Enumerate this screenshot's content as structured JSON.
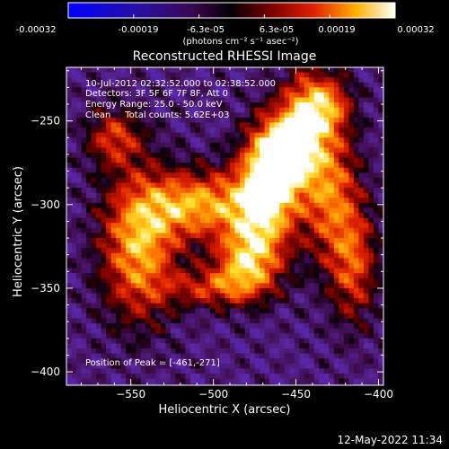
{
  "colorbar": {
    "ticks": [
      "-0.00032",
      "-0.00019",
      "-6.3e-05",
      "6.3e-05",
      "0.00019",
      "0.00032"
    ],
    "range": [
      -0.00032,
      0.00032
    ],
    "units_label": "(photons cm⁻² s⁻¹ asec⁻²)"
  },
  "chart_data": {
    "type": "heatmap",
    "title": "Reconstructed RHESSI Image",
    "xlabel": "Heliocentric X (arcsec)",
    "ylabel": "Heliocentric Y (arcsec)",
    "xlim": [
      -589,
      -397
    ],
    "ylim": [
      -408,
      -218
    ],
    "xticks": [
      -550,
      -500,
      -450,
      -400
    ],
    "yticks": [
      -250,
      -300,
      -350,
      -400
    ],
    "xtick_labels": [
      "−550",
      "−500",
      "−450",
      "−400"
    ],
    "ytick_labels": [
      "−250",
      "−300",
      "−350",
      "−400"
    ],
    "grid": false,
    "colormap": "hot-blue diverging",
    "annotations": [
      "10-Jul-2012 02:32:52.000 to 02:38:52.000",
      "Detectors: 3F 5F 6F 7F 8F, Att 0",
      "Energy Range: 25.0 - 50.0 keV",
      "Clean     Total counts: 5.62E+03"
    ],
    "peak_label": "Position of Peak = [-461,-271]",
    "peak_position": [
      -461,
      -271
    ]
  },
  "footer": {
    "date": "12-May-2022 11:34"
  },
  "colors": {
    "background": "#000000",
    "foreground": "#ffffff"
  }
}
